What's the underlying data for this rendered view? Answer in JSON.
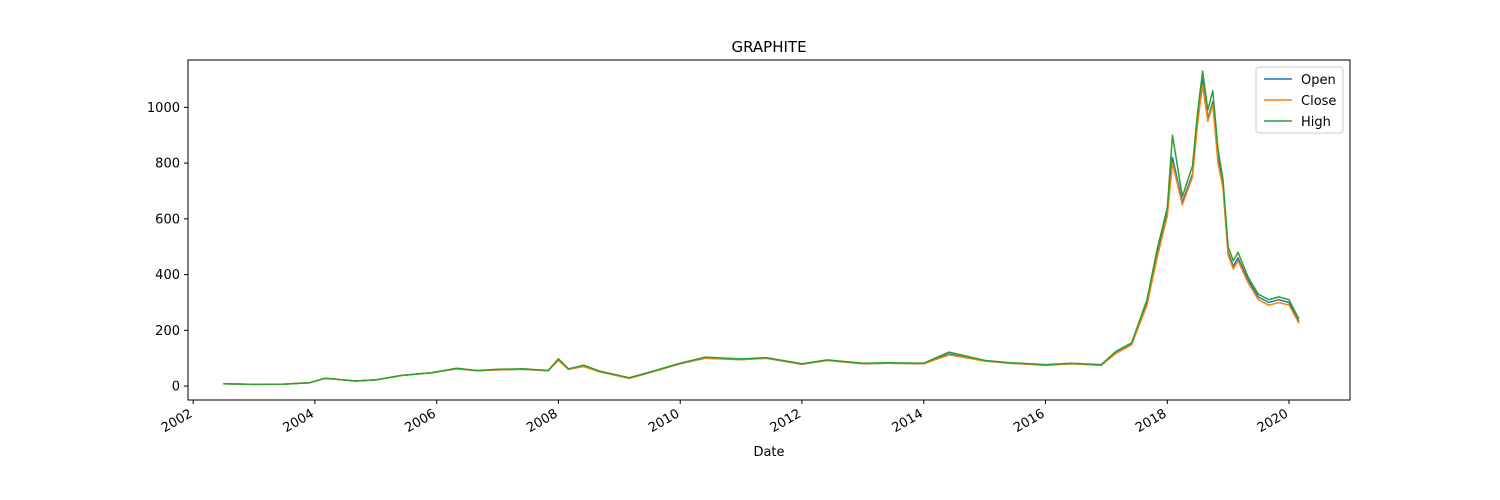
{
  "chart_data": {
    "type": "line",
    "title": "GRAPHITE",
    "xlabel": "Date",
    "ylabel": "",
    "xlim": [
      "2001-12-01",
      "2021-01-01"
    ],
    "ylim": [
      -50,
      1170
    ],
    "x_ticks": [
      "2002",
      "2004",
      "2006",
      "2008",
      "2010",
      "2012",
      "2014",
      "2016",
      "2018",
      "2020"
    ],
    "y_ticks": [
      0,
      200,
      400,
      600,
      800,
      1000
    ],
    "grid": false,
    "legend_position": "top-right",
    "x": [
      "2002-07-01",
      "2003-01-01",
      "2003-07-01",
      "2003-12-01",
      "2004-03-01",
      "2004-09-01",
      "2005-01-01",
      "2005-06-01",
      "2005-12-01",
      "2006-05-01",
      "2006-09-01",
      "2007-01-01",
      "2007-06-01",
      "2007-11-01",
      "2008-01-01",
      "2008-03-01",
      "2008-06-01",
      "2008-09-01",
      "2009-03-01",
      "2009-07-01",
      "2010-01-01",
      "2010-06-01",
      "2011-01-01",
      "2011-06-01",
      "2012-01-01",
      "2012-06-01",
      "2013-01-01",
      "2013-06-01",
      "2014-01-01",
      "2014-06-01",
      "2015-01-01",
      "2015-06-01",
      "2016-01-01",
      "2016-06-01",
      "2016-12-01",
      "2017-03-01",
      "2017-06-01",
      "2017-09-01",
      "2017-11-01",
      "2018-01-01",
      "2018-02-01",
      "2018-04-01",
      "2018-06-01",
      "2018-07-01",
      "2018-08-01",
      "2018-09-01",
      "2018-10-01",
      "2018-11-01",
      "2018-12-01",
      "2019-01-01",
      "2019-02-01",
      "2019-03-01",
      "2019-05-01",
      "2019-07-01",
      "2019-09-01",
      "2019-11-01",
      "2020-01-01",
      "2020-03-01"
    ],
    "series": [
      {
        "name": "Open",
        "color": "#1f77b4",
        "values": [
          8,
          6,
          7,
          12,
          28,
          18,
          22,
          38,
          48,
          62,
          55,
          58,
          60,
          55,
          95,
          60,
          72,
          52,
          28,
          48,
          80,
          100,
          95,
          100,
          78,
          92,
          80,
          82,
          80,
          115,
          90,
          82,
          75,
          80,
          75,
          120,
          150,
          300,
          470,
          620,
          820,
          660,
          760,
          950,
          1100,
          960,
          1020,
          820,
          720,
          480,
          430,
          460,
          380,
          320,
          300,
          310,
          300,
          230
        ]
      },
      {
        "name": "Close",
        "color": "#ff7f0e",
        "values": [
          8,
          6,
          7,
          12,
          28,
          18,
          22,
          38,
          48,
          62,
          55,
          58,
          60,
          55,
          92,
          60,
          70,
          52,
          28,
          48,
          80,
          100,
          95,
          100,
          78,
          92,
          80,
          82,
          80,
          112,
          90,
          82,
          75,
          80,
          75,
          118,
          148,
          290,
          460,
          610,
          800,
          650,
          750,
          940,
          1080,
          950,
          1010,
          800,
          710,
          470,
          420,
          450,
          370,
          310,
          290,
          300,
          290,
          225
        ]
      },
      {
        "name": "High",
        "color": "#2ca02c",
        "values": [
          8,
          6,
          7,
          12,
          28,
          18,
          22,
          38,
          48,
          64,
          56,
          60,
          62,
          56,
          98,
          62,
          75,
          54,
          30,
          50,
          82,
          104,
          97,
          102,
          80,
          94,
          82,
          84,
          82,
          122,
          92,
          84,
          77,
          82,
          77,
          125,
          155,
          310,
          490,
          640,
          900,
          680,
          790,
          980,
          1130,
          990,
          1060,
          850,
          740,
          500,
          450,
          480,
          390,
          330,
          310,
          320,
          310,
          240
        ]
      }
    ]
  }
}
